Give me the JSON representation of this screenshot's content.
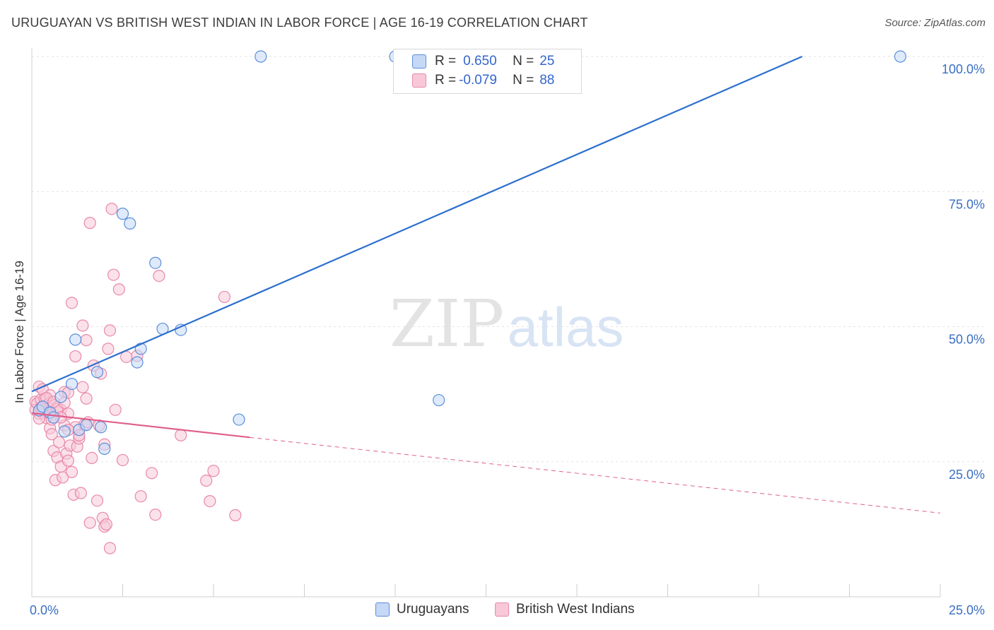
{
  "title": "URUGUAYAN VS BRITISH WEST INDIAN IN LABOR FORCE | AGE 16-19 CORRELATION CHART",
  "source": "Source: ZipAtlas.com",
  "watermark": {
    "zip": "ZIP",
    "atlas": "atlas"
  },
  "legend_stats": {
    "r_label": "R =",
    "n_label": "N =",
    "uruguayans": {
      "r": "0.650",
      "n": "25"
    },
    "bwi": {
      "r": "-0.079",
      "n": "88"
    }
  },
  "colors": {
    "uruguayans_fill": "#c5d8f5",
    "uruguayans_stroke": "#5b8fdb",
    "uruguayans_line": "#2c6fce",
    "bwi_fill": "#f8c8d8",
    "bwi_stroke": "#e889aa",
    "bwi_line": "#e0608a",
    "axis_label": "#3a6fc4"
  },
  "chart_data": {
    "type": "scatter",
    "title": "URUGUAYAN VS BRITISH WEST INDIAN IN LABOR FORCE | AGE 16-19 CORRELATION CHART",
    "xlabel": "",
    "ylabel": "In Labor Force | Age 16-19",
    "xlim": [
      0,
      25
    ],
    "ylim": [
      0,
      100
    ],
    "x_tick_labels": [
      "0.0%",
      "25.0%"
    ],
    "y_tick_labels": [
      "25.0%",
      "50.0%",
      "75.0%",
      "100.0%"
    ],
    "y_ticks": [
      25,
      50,
      75,
      100
    ],
    "series": [
      {
        "name": "Uruguayans",
        "points": [
          [
            0.2,
            34.5
          ],
          [
            0.3,
            35.2
          ],
          [
            0.5,
            34.1
          ],
          [
            0.6,
            33.2
          ],
          [
            0.8,
            37.0
          ],
          [
            1.1,
            39.4
          ],
          [
            0.9,
            30.6
          ],
          [
            1.3,
            30.9
          ],
          [
            1.5,
            31.8
          ],
          [
            1.2,
            47.6
          ],
          [
            1.8,
            41.6
          ],
          [
            2.0,
            27.4
          ],
          [
            1.9,
            31.4
          ],
          [
            2.5,
            70.9
          ],
          [
            2.7,
            69.1
          ],
          [
            3.0,
            45.9
          ],
          [
            2.9,
            43.4
          ],
          [
            3.4,
            61.8
          ],
          [
            3.6,
            49.6
          ],
          [
            4.1,
            49.4
          ],
          [
            5.7,
            32.8
          ],
          [
            6.3,
            100.0
          ],
          [
            10.0,
            100.0
          ],
          [
            11.2,
            36.4
          ],
          [
            23.9,
            100.0
          ]
        ]
      },
      {
        "name": "British West Indians",
        "points": [
          [
            0.1,
            36.1
          ],
          [
            0.1,
            34.6
          ],
          [
            0.15,
            35.8
          ],
          [
            0.2,
            33.9
          ],
          [
            0.2,
            38.9
          ],
          [
            0.25,
            36.5
          ],
          [
            0.3,
            35.1
          ],
          [
            0.3,
            34.0
          ],
          [
            0.35,
            36.7
          ],
          [
            0.4,
            33.1
          ],
          [
            0.4,
            35.4
          ],
          [
            0.45,
            34.2
          ],
          [
            0.5,
            31.2
          ],
          [
            0.5,
            36.0
          ],
          [
            0.55,
            30.1
          ],
          [
            0.6,
            33.7
          ],
          [
            0.6,
            27.0
          ],
          [
            0.65,
            21.6
          ],
          [
            0.7,
            35.1
          ],
          [
            0.7,
            25.8
          ],
          [
            0.75,
            28.6
          ],
          [
            0.8,
            34.6
          ],
          [
            0.8,
            24.1
          ],
          [
            0.85,
            22.1
          ],
          [
            0.9,
            37.9
          ],
          [
            0.9,
            31.7
          ],
          [
            0.95,
            26.5
          ],
          [
            1.0,
            25.2
          ],
          [
            1.0,
            33.9
          ],
          [
            1.0,
            37.8
          ],
          [
            1.05,
            28.0
          ],
          [
            1.1,
            23.1
          ],
          [
            1.1,
            54.4
          ],
          [
            1.15,
            18.9
          ],
          [
            1.2,
            31.4
          ],
          [
            1.2,
            44.5
          ],
          [
            1.25,
            27.8
          ],
          [
            1.3,
            29.3
          ],
          [
            1.35,
            19.2
          ],
          [
            1.4,
            50.2
          ],
          [
            1.4,
            38.8
          ],
          [
            1.45,
            31.9
          ],
          [
            1.5,
            47.5
          ],
          [
            1.55,
            32.3
          ],
          [
            1.6,
            69.2
          ],
          [
            1.6,
            13.7
          ],
          [
            1.65,
            25.7
          ],
          [
            1.7,
            42.8
          ],
          [
            1.8,
            17.8
          ],
          [
            1.85,
            31.7
          ],
          [
            1.9,
            41.3
          ],
          [
            1.95,
            14.6
          ],
          [
            2.0,
            13.0
          ],
          [
            2.0,
            28.2
          ],
          [
            2.05,
            13.4
          ],
          [
            2.1,
            45.9
          ],
          [
            2.15,
            9.0
          ],
          [
            2.15,
            49.3
          ],
          [
            2.2,
            71.8
          ],
          [
            2.25,
            59.6
          ],
          [
            2.3,
            34.6
          ],
          [
            2.4,
            56.9
          ],
          [
            2.5,
            25.3
          ],
          [
            2.6,
            44.4
          ],
          [
            2.9,
            44.6
          ],
          [
            3.0,
            18.6
          ],
          [
            3.3,
            22.9
          ],
          [
            3.4,
            15.2
          ],
          [
            3.5,
            59.4
          ],
          [
            4.1,
            29.9
          ],
          [
            4.8,
            21.5
          ],
          [
            4.9,
            17.7
          ],
          [
            5.0,
            23.3
          ],
          [
            5.3,
            55.5
          ],
          [
            5.6,
            15.1
          ],
          [
            0.3,
            38.4
          ],
          [
            0.5,
            37.3
          ],
          [
            0.7,
            34.8
          ],
          [
            0.9,
            35.9
          ],
          [
            1.3,
            29.9
          ],
          [
            0.2,
            33.0
          ],
          [
            0.4,
            36.8
          ],
          [
            0.6,
            36.1
          ],
          [
            0.8,
            33.2
          ],
          [
            1.0,
            30.9
          ],
          [
            1.5,
            36.7
          ],
          [
            0.25,
            35.0
          ],
          [
            0.55,
            32.8
          ]
        ]
      }
    ],
    "trend_lines": [
      {
        "series": "Uruguayans",
        "x": [
          0,
          21.2
        ],
        "y": [
          38.0,
          100.0
        ]
      },
      {
        "series": "British West Indians",
        "x": [
          0,
          6.0
        ],
        "y": [
          34.0,
          29.5
        ],
        "dashed_extension": {
          "x": [
            6.0,
            25.0
          ],
          "y": [
            29.5,
            15.5
          ]
        }
      }
    ]
  },
  "bottom_legend": {
    "uruguayans": "Uruguayans",
    "bwi": "British West Indians"
  }
}
